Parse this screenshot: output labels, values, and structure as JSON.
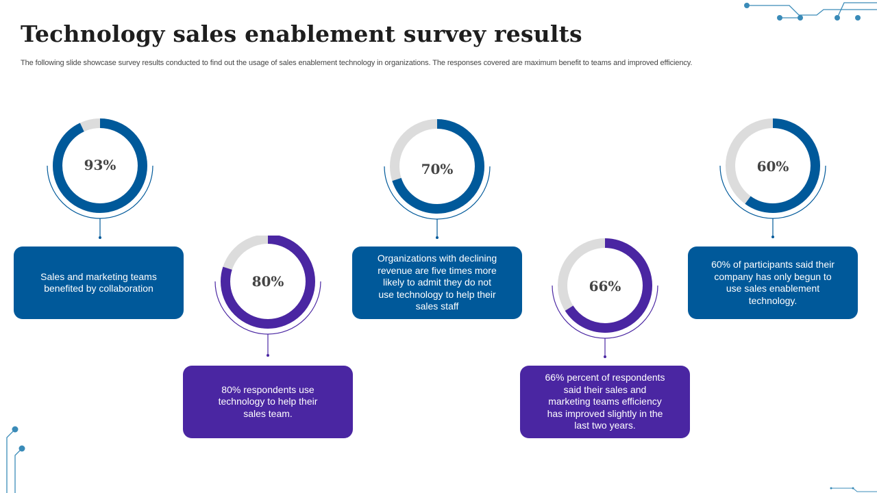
{
  "title": "Technology sales enablement survey results",
  "subtitle": "The following slide showcase survey results conducted to find out the usage of sales enablement technology in organizations. The responses covered are maximum benefit to teams and improved efficiency.",
  "colors": {
    "blue": "#00599a",
    "purple": "#4a26a2",
    "track": "#dcdcdc",
    "decor": "#3a8bb8"
  },
  "items": [
    {
      "value": 93,
      "label": "93%",
      "text": "Sales and marketing teams benefited by collaboration",
      "color": "blue"
    },
    {
      "value": 80,
      "label": "80%",
      "text": "80% respondents use technology to help their sales team.",
      "color": "purple"
    },
    {
      "value": 70,
      "label": "70%",
      "text": "Organizations with declining revenue are five times more likely to admit they do not use technology to help their sales staff",
      "color": "blue"
    },
    {
      "value": 66,
      "label": "66%",
      "text": "66% percent of respondents said their sales and marketing teams efficiency has improved slightly in the last two years.",
      "color": "purple"
    },
    {
      "value": 60,
      "label": "60%",
      "text": "60% of participants said their company has only begun to use sales enablement technology.",
      "color": "blue"
    }
  ]
}
